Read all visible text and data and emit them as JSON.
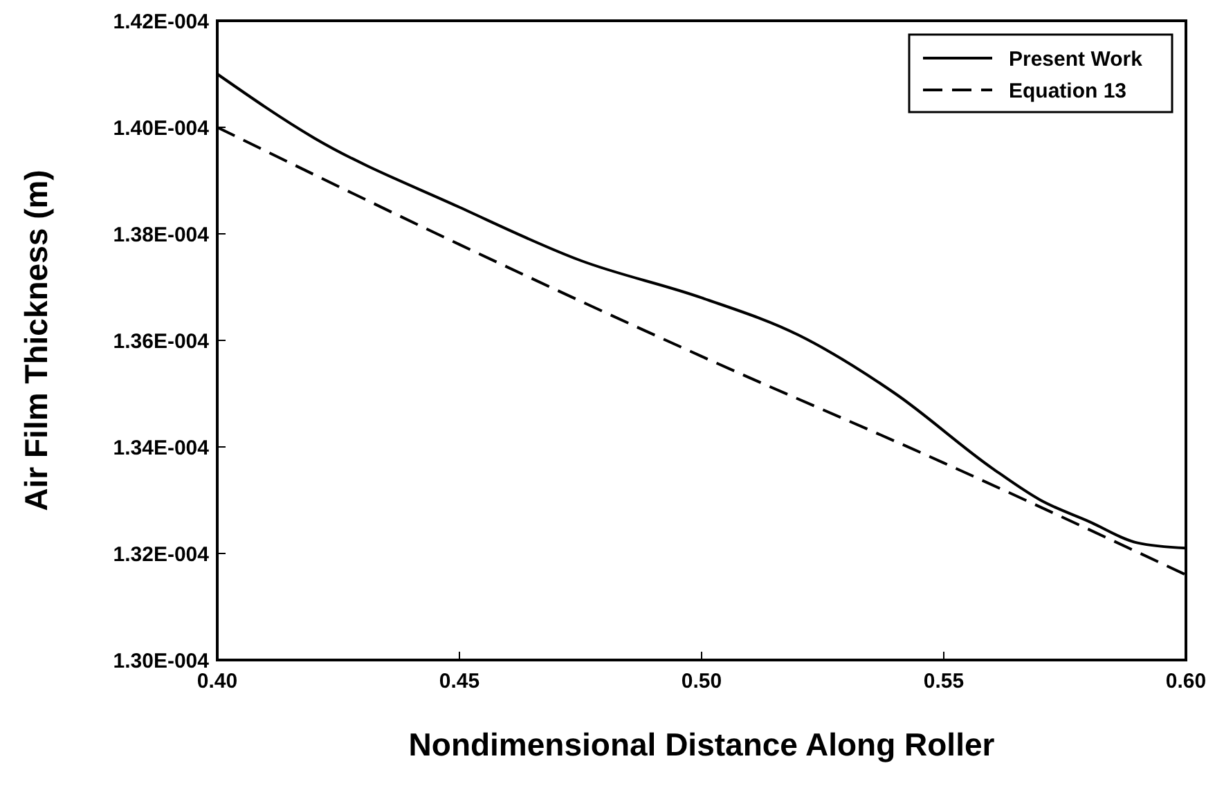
{
  "chart_data": {
    "type": "line",
    "xlabel": "Nondimensional Distance Along Roller",
    "ylabel": "Air Film Thickness (m)",
    "xlim": [
      0.4,
      0.6
    ],
    "xticks": [
      {
        "value": 0.4,
        "label": "0.40"
      },
      {
        "value": 0.45,
        "label": "0.45"
      },
      {
        "value": 0.5,
        "label": "0.50"
      },
      {
        "value": 0.55,
        "label": "0.55"
      },
      {
        "value": 0.6,
        "label": "0.60"
      }
    ],
    "ylim": [
      0.00013,
      0.000142
    ],
    "yticks": [
      {
        "value": 0.00013,
        "label": "1.30E-004"
      },
      {
        "value": 0.000132,
        "label": "1.32E-004"
      },
      {
        "value": 0.000134,
        "label": "1.34E-004"
      },
      {
        "value": 0.000136,
        "label": "1.36E-004"
      },
      {
        "value": 0.000138,
        "label": "1.38E-004"
      },
      {
        "value": 0.00014,
        "label": "1.40E-004"
      },
      {
        "value": 0.000142,
        "label": "1.42E-004"
      }
    ],
    "legend": "top right",
    "grid": false,
    "series": [
      {
        "name": "Present Work",
        "color": "#000000",
        "line_style": "solid",
        "x": [
          0.4,
          0.42,
          0.45,
          0.475,
          0.5,
          0.52,
          0.54,
          0.56,
          0.57,
          0.58,
          0.59,
          0.6
        ],
        "values": [
          0.000141,
          0.0001398,
          0.0001385,
          0.0001375,
          0.0001368,
          0.0001361,
          0.000135,
          0.0001336,
          0.000133,
          0.0001326,
          0.0001322,
          0.0001321
        ]
      },
      {
        "name": "Equation 13",
        "color": "#000000",
        "line_style": "dashed",
        "x": [
          0.4,
          0.45,
          0.5,
          0.55,
          0.6
        ],
        "values": [
          0.00014,
          0.0001378,
          0.0001357,
          0.0001337,
          0.0001316
        ]
      }
    ]
  }
}
